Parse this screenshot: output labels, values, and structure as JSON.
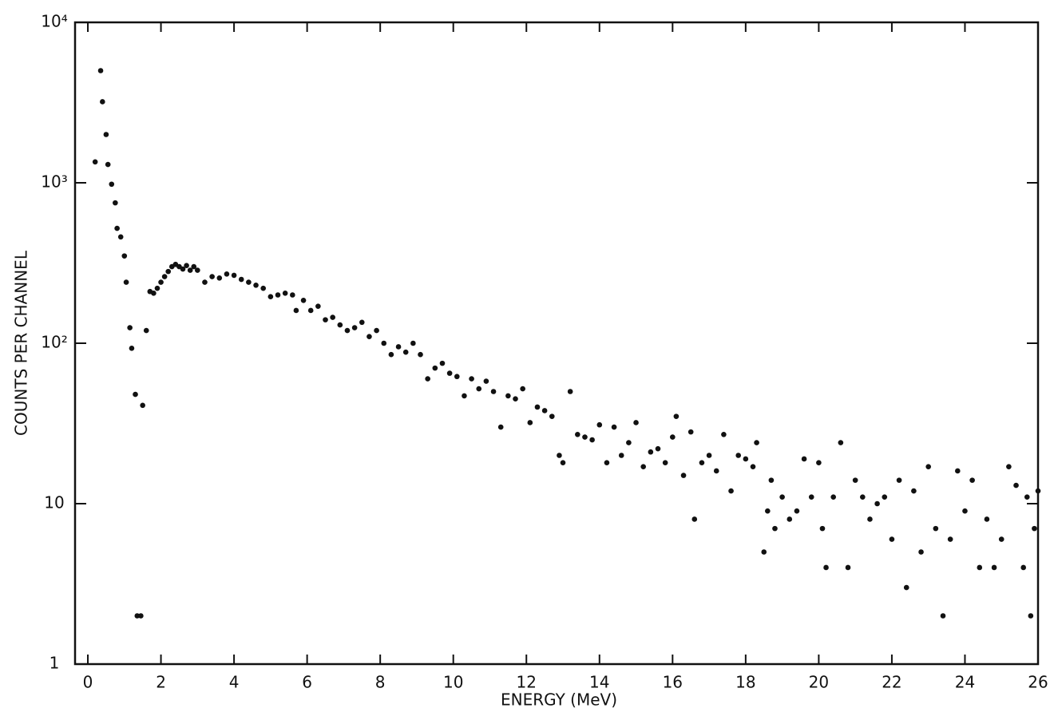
{
  "chart_data": {
    "type": "scatter",
    "x_label": "ENERGY (MeV)",
    "y_label": "COUNTS PER CHANNEL",
    "log_y": true,
    "color": "#111111",
    "xlim": [
      -0.35,
      26
    ],
    "ylim": [
      1,
      10000
    ],
    "xticks": [
      0,
      2,
      4,
      6,
      8,
      10,
      12,
      14,
      16,
      18,
      20,
      22,
      24,
      26
    ],
    "yticks": [
      1,
      10,
      {
        "value": 100,
        "label": "10²"
      },
      {
        "value": 1000,
        "label": "10³"
      },
      {
        "value": 10000,
        "label": "10⁴"
      }
    ],
    "x": [
      0.2,
      0.35,
      0.4,
      0.5,
      0.55,
      0.65,
      0.75,
      0.8,
      0.9,
      1.0,
      1.05,
      1.15,
      1.2,
      1.3,
      1.35,
      1.45,
      1.5,
      1.6,
      1.7,
      1.8,
      1.9,
      2.0,
      2.1,
      2.2,
      2.3,
      2.4,
      2.5,
      2.6,
      2.7,
      2.8,
      2.9,
      3.0,
      3.2,
      3.4,
      3.6,
      3.8,
      4.0,
      4.2,
      4.4,
      4.6,
      4.8,
      5.0,
      5.2,
      5.4,
      5.6,
      5.7,
      5.9,
      6.1,
      6.3,
      6.5,
      6.7,
      6.9,
      7.1,
      7.3,
      7.5,
      7.7,
      7.9,
      8.1,
      8.3,
      8.5,
      8.7,
      8.9,
      9.1,
      9.3,
      9.5,
      9.7,
      9.9,
      10.1,
      10.3,
      10.5,
      10.7,
      10.9,
      11.1,
      11.3,
      11.5,
      11.7,
      11.9,
      12.1,
      12.3,
      12.5,
      12.7,
      12.9,
      13.0,
      13.2,
      13.4,
      13.6,
      13.8,
      14.0,
      14.2,
      14.4,
      14.6,
      14.8,
      15.0,
      15.2,
      15.4,
      15.6,
      15.8,
      16.0,
      16.1,
      16.3,
      16.5,
      16.6,
      16.8,
      17.0,
      17.2,
      17.4,
      17.6,
      17.8,
      18.0,
      18.2,
      18.3,
      18.5,
      18.6,
      18.7,
      18.8,
      19.0,
      19.2,
      19.4,
      19.6,
      19.8,
      20.0,
      20.1,
      20.2,
      20.4,
      20.6,
      20.8,
      21.0,
      21.2,
      21.4,
      21.6,
      21.8,
      22.0,
      22.2,
      22.4,
      22.6,
      22.8,
      23.0,
      23.2,
      23.4,
      23.6,
      23.8,
      24.0,
      24.2,
      24.4,
      24.6,
      24.8,
      25.0,
      25.2,
      25.4,
      25.6,
      25.7,
      25.8,
      25.9,
      26.0
    ],
    "values": [
      1350,
      5000,
      3200,
      2000,
      1300,
      980,
      750,
      520,
      460,
      350,
      240,
      125,
      93,
      48,
      2,
      2,
      41,
      120,
      210,
      205,
      220,
      240,
      260,
      280,
      300,
      310,
      300,
      290,
      305,
      285,
      300,
      285,
      240,
      260,
      255,
      270,
      265,
      250,
      240,
      230,
      220,
      195,
      200,
      205,
      200,
      160,
      185,
      160,
      170,
      140,
      145,
      130,
      120,
      125,
      135,
      110,
      120,
      100,
      85,
      95,
      88,
      100,
      85,
      60,
      70,
      75,
      65,
      62,
      47,
      60,
      52,
      58,
      50,
      30,
      47,
      45,
      52,
      32,
      40,
      38,
      35,
      20,
      18,
      50,
      27,
      26,
      25,
      31,
      18,
      30,
      20,
      24,
      32,
      17,
      21,
      22,
      18,
      26,
      35,
      15,
      28,
      8,
      18,
      20,
      16,
      27,
      12,
      20,
      19,
      17,
      24,
      5,
      9,
      14,
      7,
      11,
      8,
      9,
      19,
      11,
      18,
      7,
      4,
      11,
      24,
      4,
      14,
      11,
      8,
      10,
      11,
      6,
      14,
      3,
      12,
      5,
      17,
      7,
      2,
      6,
      16,
      9,
      14,
      4,
      8,
      4,
      6,
      17,
      13,
      4,
      11,
      2,
      7,
      12
    ]
  }
}
